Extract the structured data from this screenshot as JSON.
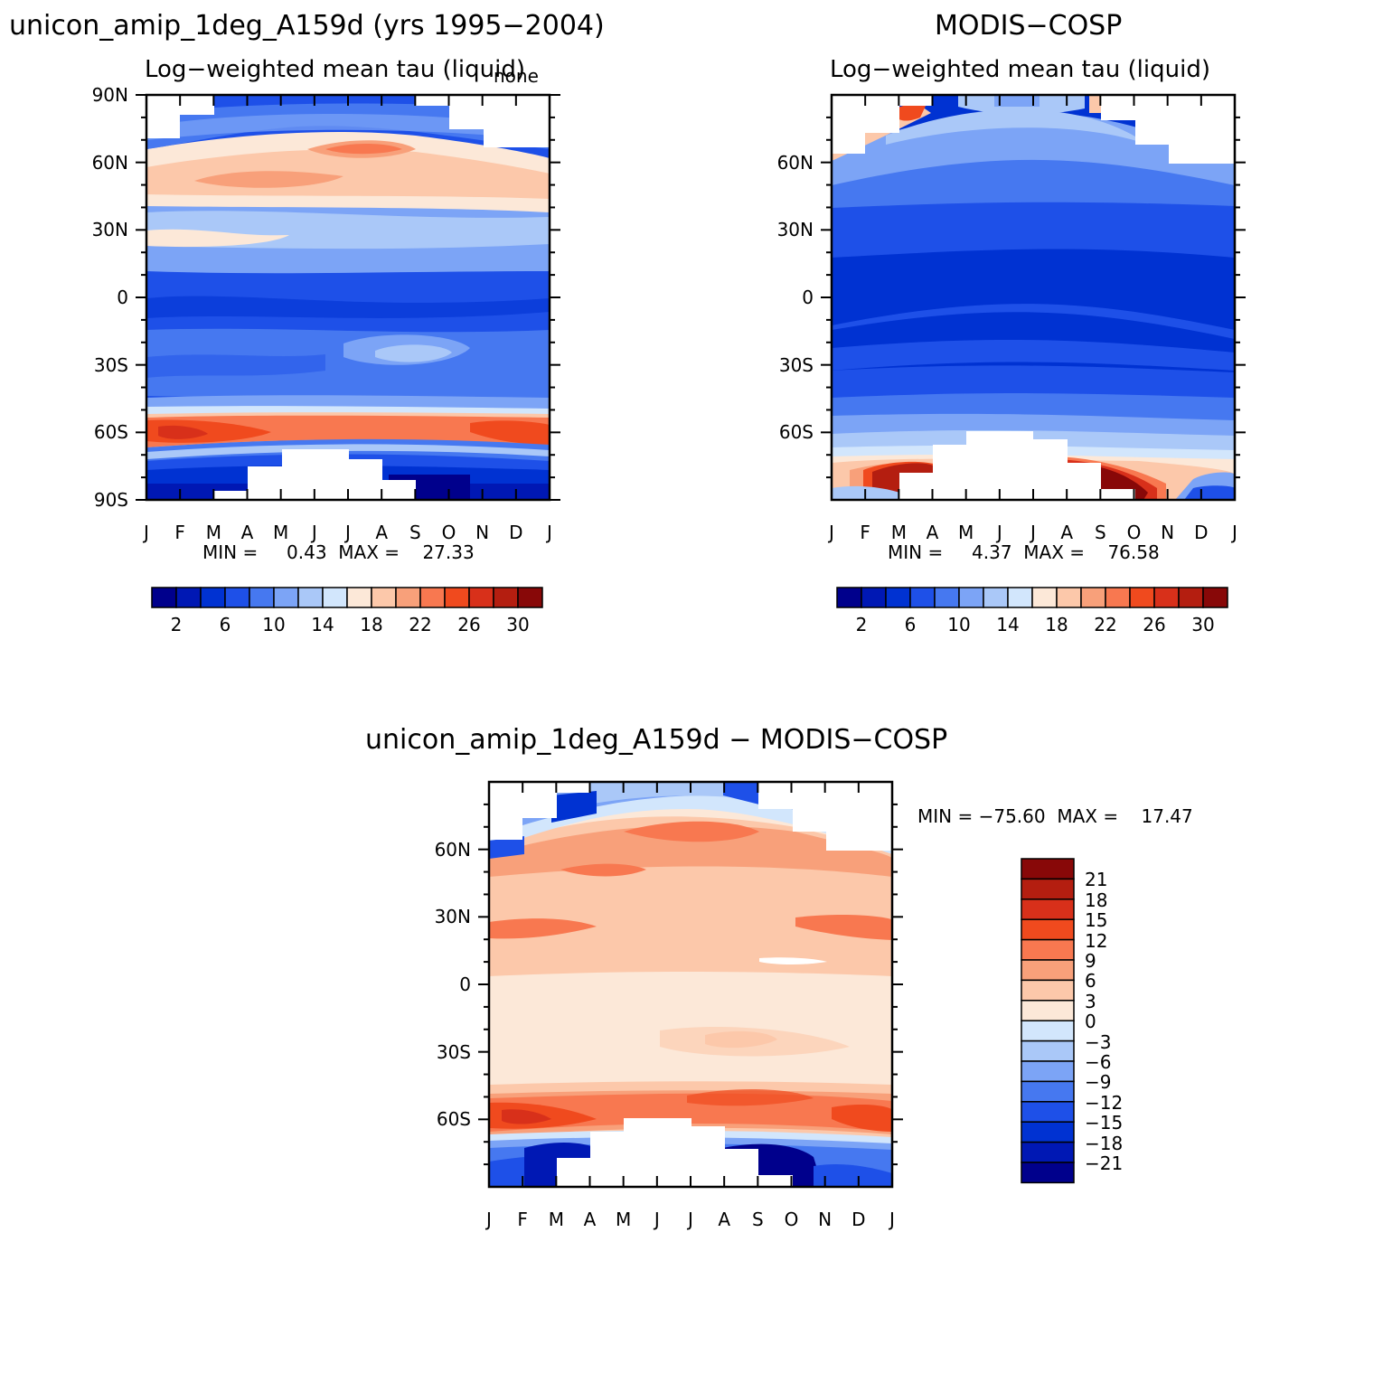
{
  "colors": {
    "frame": "#000000",
    "background": "#ffffff"
  },
  "chart_data": [
    {
      "type": "heatmap",
      "panel": "model",
      "title": "unicon_amip_1deg_A159d (yrs 1995−2004)",
      "subtitle": "Log−weighted mean tau (liquid)",
      "corner_label": "none",
      "stats_text": "MIN =     0.43  MAX =    27.33",
      "min": 0.43,
      "max": 27.33,
      "x_ticks": [
        "J",
        "F",
        "M",
        "A",
        "M",
        "J",
        "J",
        "A",
        "S",
        "O",
        "N",
        "D",
        "J"
      ],
      "y_ticks": [
        "90N",
        "60N",
        "30N",
        "0",
        "30S",
        "60S",
        "90S"
      ],
      "ylim": [
        -90,
        90
      ],
      "colorbar_labels": [
        "2",
        "6",
        "10",
        "14",
        "18",
        "22",
        "26",
        "30"
      ],
      "colorbar_colors": [
        "#00008c",
        "#0018b4",
        "#0032d2",
        "#1e50e8",
        "#4678f0",
        "#7ca4f6",
        "#aac8f8",
        "#d2e6fc",
        "#fce8d8",
        "#fcc8aa",
        "#f8a07a",
        "#f87850",
        "#f04a1e",
        "#d8301a",
        "#b41e10",
        "#880808"
      ]
    },
    {
      "type": "heatmap",
      "panel": "obs",
      "title": "MODIS−COSP",
      "subtitle": "Log−weighted mean tau (liquid)",
      "stats_text": "MIN =     4.37  MAX =    76.58",
      "min": 4.37,
      "max": 76.58,
      "x_ticks": [
        "J",
        "F",
        "M",
        "A",
        "M",
        "J",
        "J",
        "A",
        "S",
        "O",
        "N",
        "D",
        "J"
      ],
      "y_ticks": [
        "60N",
        "30N",
        "0",
        "30S",
        "60S"
      ],
      "ylim": [
        -90,
        90
      ],
      "colorbar_labels": [
        "2",
        "6",
        "10",
        "14",
        "18",
        "22",
        "26",
        "30"
      ],
      "colorbar_colors": [
        "#00008c",
        "#0018b4",
        "#0032d2",
        "#1e50e8",
        "#4678f0",
        "#7ca4f6",
        "#aac8f8",
        "#d2e6fc",
        "#fce8d8",
        "#fcc8aa",
        "#f8a07a",
        "#f87850",
        "#f04a1e",
        "#d8301a",
        "#b41e10",
        "#880808"
      ]
    },
    {
      "type": "heatmap",
      "panel": "diff",
      "title": "unicon_amip_1deg_A159d − MODIS−COSP",
      "stats_text": "MIN = −75.60  MAX =    17.47",
      "min": -75.6,
      "max": 17.47,
      "x_ticks": [
        "J",
        "F",
        "M",
        "A",
        "M",
        "J",
        "J",
        "A",
        "S",
        "O",
        "N",
        "D",
        "J"
      ],
      "y_ticks": [
        "60N",
        "30N",
        "0",
        "30S",
        "60S"
      ],
      "ylim": [
        -90,
        90
      ],
      "colorbar_labels": [
        "21",
        "18",
        "15",
        "12",
        "9",
        "6",
        "3",
        "0",
        "−3",
        "−6",
        "−9",
        "−12",
        "−15",
        "−18",
        "−21"
      ],
      "colorbar_colors": [
        "#880808",
        "#b41e10",
        "#d8301a",
        "#f04a1e",
        "#f87850",
        "#f8a07a",
        "#fcc8aa",
        "#fce8d8",
        "#d2e6fc",
        "#aac8f8",
        "#7ca4f6",
        "#4678f0",
        "#1e50e8",
        "#0032d2",
        "#0018b4",
        "#00008c"
      ]
    }
  ]
}
